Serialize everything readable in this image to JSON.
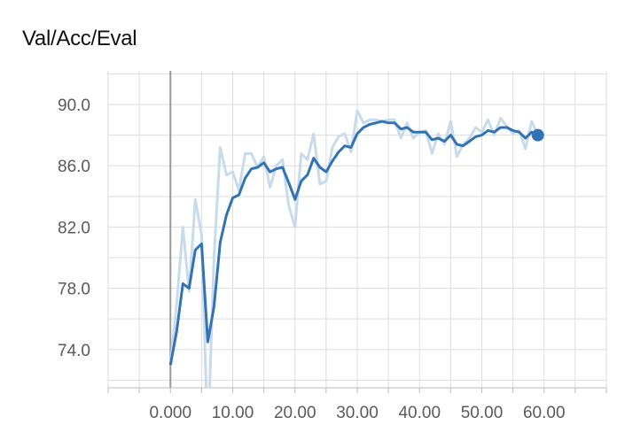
{
  "chart_data": {
    "type": "line",
    "title": "Val/Acc/Eval",
    "xlabel": "",
    "ylabel": "",
    "xlim": [
      -10,
      70
    ],
    "ylim": [
      71.5,
      92.2
    ],
    "x_ticks": [
      0,
      10,
      20,
      30,
      40,
      50,
      60
    ],
    "x_tick_labels": [
      "0.000",
      "10.00",
      "20.00",
      "30.00",
      "40.00",
      "50.00",
      "60.00"
    ],
    "y_ticks": [
      74,
      78,
      82,
      86,
      90
    ],
    "y_tick_labels": [
      "74.0",
      "78.0",
      "82.0",
      "86.0",
      "90.0"
    ],
    "grid": true,
    "colors": {
      "smoothed": "#3273b4",
      "raw": "#c8dbec",
      "grid": "#dddddd",
      "zero_axis": "#999999"
    },
    "series": [
      {
        "role": "raw",
        "x": [
          0,
          1,
          2,
          3,
          4,
          5,
          6,
          7,
          8,
          9,
          10,
          11,
          12,
          13,
          14,
          15,
          16,
          17,
          18,
          19,
          20,
          21,
          22,
          23,
          24,
          25,
          26,
          27,
          28,
          29,
          30,
          31,
          32,
          33,
          34,
          35,
          36,
          37,
          38,
          39,
          40,
          41,
          42,
          43,
          44,
          45,
          46,
          47,
          48,
          49,
          50,
          51,
          52,
          53,
          54,
          55,
          56,
          57,
          58,
          59
        ],
        "values": [
          73.0,
          77.0,
          82.0,
          77.8,
          83.8,
          81.5,
          68.0,
          80.0,
          87.2,
          85.4,
          85.6,
          84.4,
          86.8,
          86.8,
          85.9,
          86.6,
          84.6,
          86.0,
          86.4,
          83.4,
          82.0,
          86.8,
          86.4,
          88.1,
          84.8,
          85.0,
          87.2,
          87.9,
          88.1,
          86.9,
          89.6,
          88.8,
          89.0,
          89.0,
          88.9,
          89.0,
          89.0,
          87.8,
          88.8,
          87.8,
          88.2,
          88.3,
          86.8,
          88.1,
          87.4,
          88.9,
          86.6,
          87.4,
          87.8,
          88.5,
          88.2,
          89.0,
          88.0,
          89.1,
          88.6,
          88.1,
          88.3,
          87.1,
          88.9,
          88.0
        ]
      },
      {
        "role": "smoothed",
        "x": [
          0,
          1,
          2,
          3,
          4,
          5,
          6,
          7,
          8,
          9,
          10,
          11,
          12,
          13,
          14,
          15,
          16,
          17,
          18,
          19,
          20,
          21,
          22,
          23,
          24,
          25,
          26,
          27,
          28,
          29,
          30,
          31,
          32,
          33,
          34,
          35,
          36,
          37,
          38,
          39,
          40,
          41,
          42,
          43,
          44,
          45,
          46,
          47,
          48,
          49,
          50,
          51,
          52,
          53,
          54,
          55,
          56,
          57,
          58,
          59
        ],
        "values": [
          73.0,
          75.2,
          78.3,
          78.0,
          80.5,
          80.9,
          74.5,
          76.8,
          81.0,
          82.8,
          83.9,
          84.1,
          85.2,
          85.8,
          85.9,
          86.2,
          85.6,
          85.8,
          85.9,
          84.9,
          83.8,
          85.0,
          85.4,
          86.5,
          85.9,
          85.6,
          86.3,
          86.9,
          87.3,
          87.2,
          88.1,
          88.5,
          88.7,
          88.8,
          88.9,
          88.8,
          88.8,
          88.4,
          88.5,
          88.2,
          88.2,
          88.2,
          87.7,
          87.8,
          87.6,
          88.0,
          87.4,
          87.3,
          87.6,
          87.9,
          88.0,
          88.3,
          88.2,
          88.5,
          88.5,
          88.3,
          88.2,
          87.8,
          88.2,
          88.0
        ]
      }
    ]
  }
}
